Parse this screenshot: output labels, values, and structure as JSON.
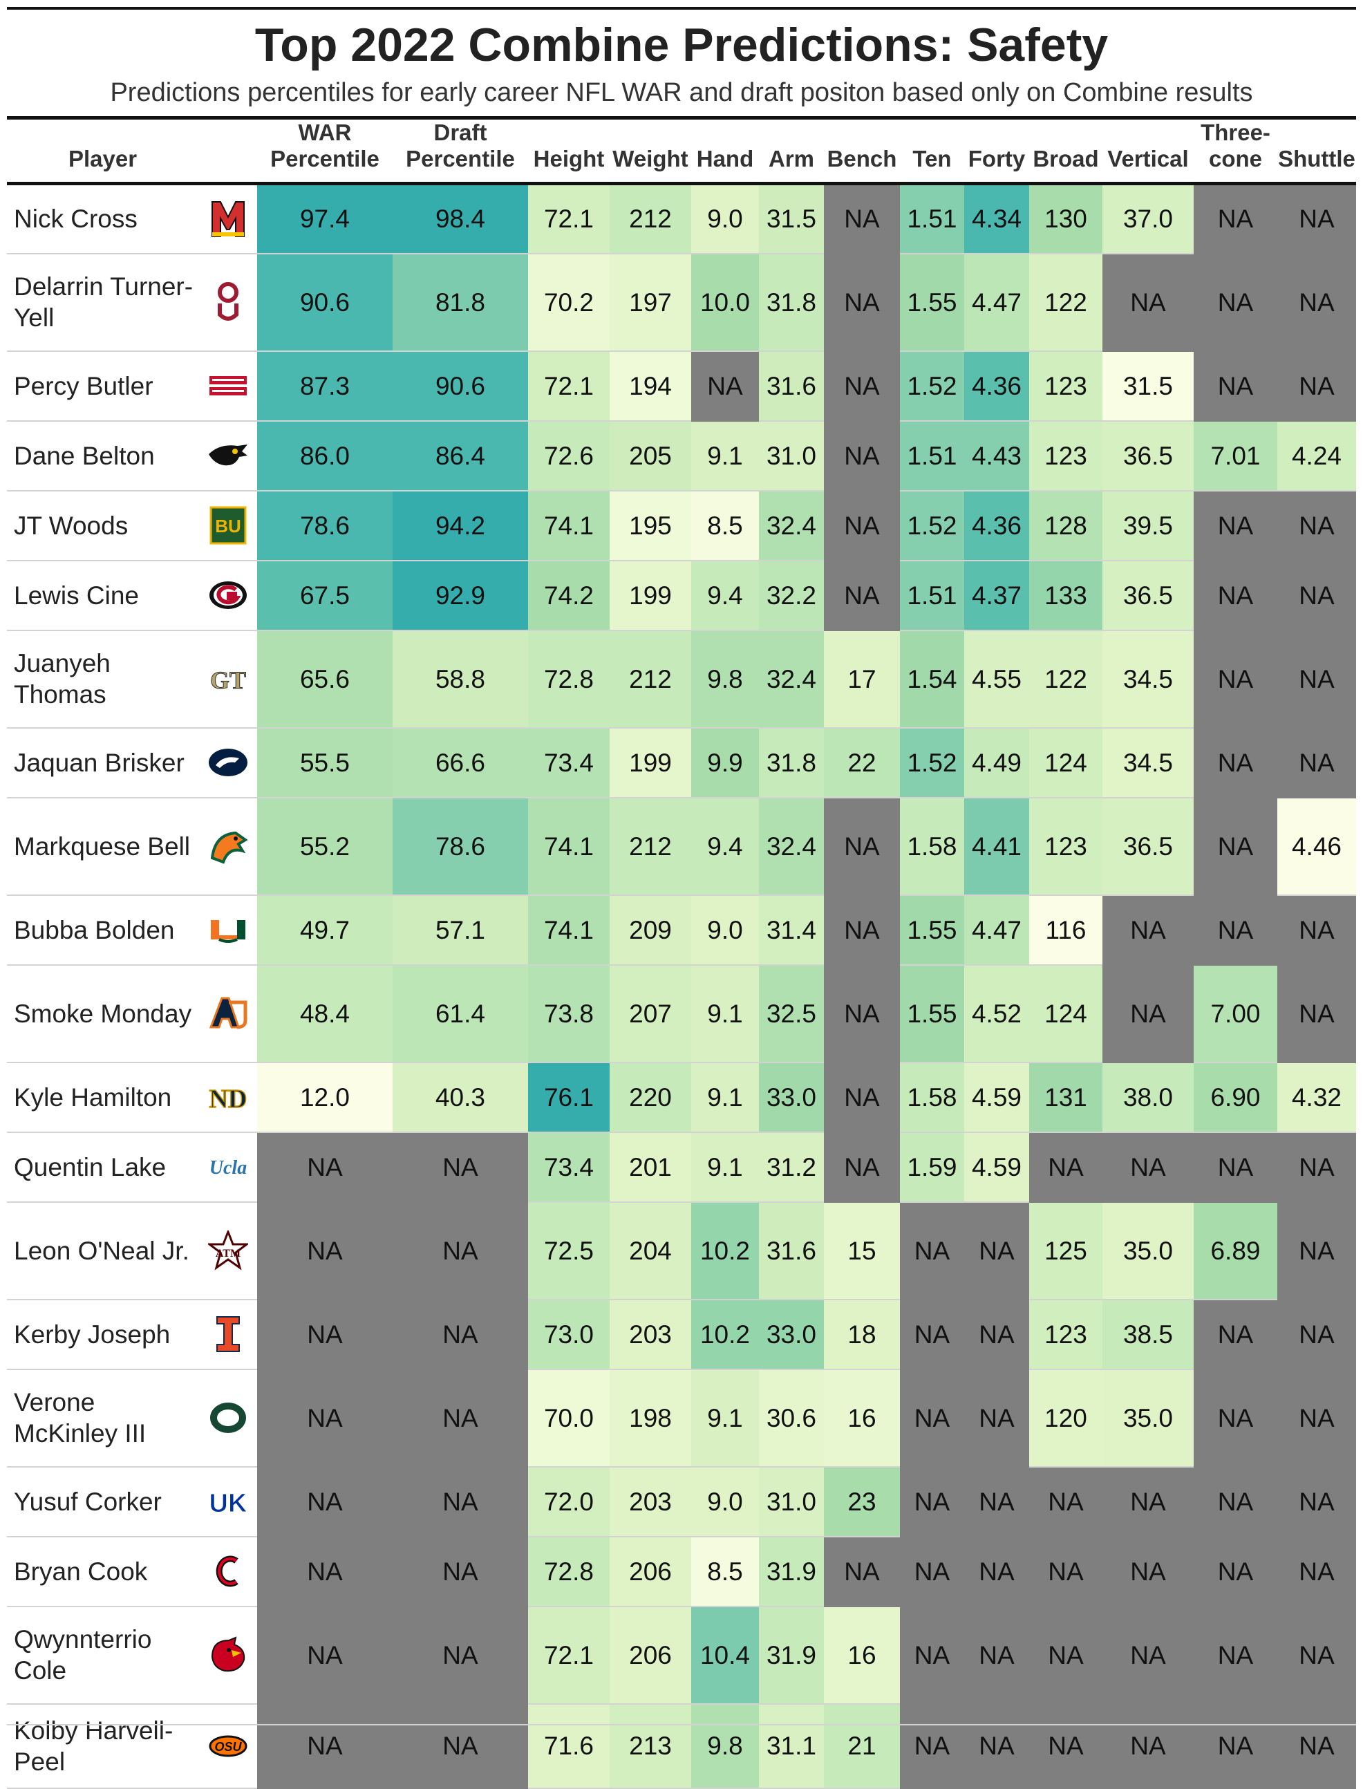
{
  "title": "Top 2022 Combine Predictions: Safety",
  "subtitle": "Predictions percentiles for early career NFL WAR and draft positon based only on Combine results",
  "columns": [
    {
      "key": "player",
      "label": "Player"
    },
    {
      "key": "logo",
      "label": ""
    },
    {
      "key": "war",
      "label": "WAR Percentile"
    },
    {
      "key": "draft",
      "label": "Draft Percentile"
    },
    {
      "key": "height",
      "label": "Height"
    },
    {
      "key": "weight",
      "label": "Weight"
    },
    {
      "key": "hand",
      "label": "Hand"
    },
    {
      "key": "arm",
      "label": "Arm"
    },
    {
      "key": "bench",
      "label": "Bench"
    },
    {
      "key": "ten",
      "label": "Ten"
    },
    {
      "key": "forty",
      "label": "Forty"
    },
    {
      "key": "broad",
      "label": "Broad"
    },
    {
      "key": "vertical",
      "label": "Vertical"
    },
    {
      "key": "three_cone",
      "label": "Three-cone"
    },
    {
      "key": "shuttle",
      "label": "Shuttle"
    }
  ],
  "chart_data": {
    "type": "table",
    "title": "Top 2022 Combine Predictions: Safety",
    "subtitle": "Predictions percentiles for early career NFL WAR and draft positon based only on Combine results",
    "na_label": "NA",
    "na_color": "#7f7f7f",
    "color_scale": [
      "#fbfde6",
      "#d8f0c2",
      "#a8dcab",
      "#7ccbae",
      "#4bb8b0",
      "#35adac"
    ],
    "rows": [
      {
        "player": "Nick Cross",
        "logo": "maryland-logo-icon",
        "war": "97.4",
        "draft": "98.4",
        "height": "72.1",
        "weight": "212",
        "hand": "9.0",
        "arm": "31.5",
        "bench": "NA",
        "ten": "1.51",
        "forty": "4.34",
        "broad": "130",
        "vertical": "37.0",
        "three_cone": "NA",
        "shuttle": "NA"
      },
      {
        "player": "Delarrin Turner-Yell",
        "logo": "oklahoma-logo-icon",
        "war": "90.6",
        "draft": "81.8",
        "height": "70.2",
        "weight": "197",
        "hand": "10.0",
        "arm": "31.8",
        "bench": "NA",
        "ten": "1.55",
        "forty": "4.47",
        "broad": "122",
        "vertical": "NA",
        "three_cone": "NA",
        "shuttle": "NA"
      },
      {
        "player": "Percy Butler",
        "logo": "louisiana-ragin-cajuns-logo-icon",
        "war": "87.3",
        "draft": "90.6",
        "height": "72.1",
        "weight": "194",
        "hand": "NA",
        "arm": "31.6",
        "bench": "NA",
        "ten": "1.52",
        "forty": "4.36",
        "broad": "123",
        "vertical": "31.5",
        "three_cone": "NA",
        "shuttle": "NA"
      },
      {
        "player": "Dane Belton",
        "logo": "iowa-hawkeye-logo-icon",
        "war": "86.0",
        "draft": "86.4",
        "height": "72.6",
        "weight": "205",
        "hand": "9.1",
        "arm": "31.0",
        "bench": "NA",
        "ten": "1.51",
        "forty": "4.43",
        "broad": "123",
        "vertical": "36.5",
        "three_cone": "7.01",
        "shuttle": "4.24"
      },
      {
        "player": "JT Woods",
        "logo": "baylor-logo-icon",
        "war": "78.6",
        "draft": "94.2",
        "height": "74.1",
        "weight": "195",
        "hand": "8.5",
        "arm": "32.4",
        "bench": "NA",
        "ten": "1.52",
        "forty": "4.36",
        "broad": "128",
        "vertical": "39.5",
        "three_cone": "NA",
        "shuttle": "NA"
      },
      {
        "player": "Lewis Cine",
        "logo": "georgia-logo-icon",
        "war": "67.5",
        "draft": "92.9",
        "height": "74.2",
        "weight": "199",
        "hand": "9.4",
        "arm": "32.2",
        "bench": "NA",
        "ten": "1.51",
        "forty": "4.37",
        "broad": "133",
        "vertical": "36.5",
        "three_cone": "NA",
        "shuttle": "NA"
      },
      {
        "player": "Juanyeh Thomas",
        "logo": "georgia-tech-logo-icon",
        "war": "65.6",
        "draft": "58.8",
        "height": "72.8",
        "weight": "212",
        "hand": "9.8",
        "arm": "32.4",
        "bench": "17",
        "ten": "1.54",
        "forty": "4.55",
        "broad": "122",
        "vertical": "34.5",
        "three_cone": "NA",
        "shuttle": "NA"
      },
      {
        "player": "Jaquan Brisker",
        "logo": "penn-state-logo-icon",
        "war": "55.5",
        "draft": "66.6",
        "height": "73.4",
        "weight": "199",
        "hand": "9.9",
        "arm": "31.8",
        "bench": "22",
        "ten": "1.52",
        "forty": "4.49",
        "broad": "124",
        "vertical": "34.5",
        "three_cone": "NA",
        "shuttle": "NA"
      },
      {
        "player": "Markquese Bell",
        "logo": "florida-am-rattler-logo-icon",
        "war": "55.2",
        "draft": "78.6",
        "height": "74.1",
        "weight": "212",
        "hand": "9.4",
        "arm": "32.4",
        "bench": "NA",
        "ten": "1.58",
        "forty": "4.41",
        "broad": "123",
        "vertical": "36.5",
        "three_cone": "NA",
        "shuttle": "4.46"
      },
      {
        "player": "Bubba Bolden",
        "logo": "miami-logo-icon",
        "war": "49.7",
        "draft": "57.1",
        "height": "74.1",
        "weight": "209",
        "hand": "9.0",
        "arm": "31.4",
        "bench": "NA",
        "ten": "1.55",
        "forty": "4.47",
        "broad": "116",
        "vertical": "NA",
        "three_cone": "NA",
        "shuttle": "NA"
      },
      {
        "player": "Smoke Monday",
        "logo": "auburn-logo-icon",
        "war": "48.4",
        "draft": "61.4",
        "height": "73.8",
        "weight": "207",
        "hand": "9.1",
        "arm": "32.5",
        "bench": "NA",
        "ten": "1.55",
        "forty": "4.52",
        "broad": "124",
        "vertical": "NA",
        "three_cone": "7.00",
        "shuttle": "NA"
      },
      {
        "player": "Kyle Hamilton",
        "logo": "notre-dame-logo-icon",
        "war": "12.0",
        "draft": "40.3",
        "height": "76.1",
        "weight": "220",
        "hand": "9.1",
        "arm": "33.0",
        "bench": "NA",
        "ten": "1.58",
        "forty": "4.59",
        "broad": "131",
        "vertical": "38.0",
        "three_cone": "6.90",
        "shuttle": "4.32"
      },
      {
        "player": "Quentin Lake",
        "logo": "ucla-logo-icon",
        "war": "NA",
        "draft": "NA",
        "height": "73.4",
        "weight": "201",
        "hand": "9.1",
        "arm": "31.2",
        "bench": "NA",
        "ten": "1.59",
        "forty": "4.59",
        "broad": "NA",
        "vertical": "NA",
        "three_cone": "NA",
        "shuttle": "NA"
      },
      {
        "player": "Leon O'Neal Jr.",
        "logo": "texas-am-logo-icon",
        "war": "NA",
        "draft": "NA",
        "height": "72.5",
        "weight": "204",
        "hand": "10.2",
        "arm": "31.6",
        "bench": "15",
        "ten": "NA",
        "forty": "NA",
        "broad": "125",
        "vertical": "35.0",
        "three_cone": "6.89",
        "shuttle": "NA"
      },
      {
        "player": "Kerby Joseph",
        "logo": "illinois-logo-icon",
        "war": "NA",
        "draft": "NA",
        "height": "73.0",
        "weight": "203",
        "hand": "10.2",
        "arm": "33.0",
        "bench": "18",
        "ten": "NA",
        "forty": "NA",
        "broad": "123",
        "vertical": "38.5",
        "three_cone": "NA",
        "shuttle": "NA"
      },
      {
        "player": "Verone McKinley III",
        "logo": "oregon-logo-icon",
        "war": "NA",
        "draft": "NA",
        "height": "70.0",
        "weight": "198",
        "hand": "9.1",
        "arm": "30.6",
        "bench": "16",
        "ten": "NA",
        "forty": "NA",
        "broad": "120",
        "vertical": "35.0",
        "three_cone": "NA",
        "shuttle": "NA"
      },
      {
        "player": "Yusuf Corker",
        "logo": "kentucky-logo-icon",
        "war": "NA",
        "draft": "NA",
        "height": "72.0",
        "weight": "203",
        "hand": "9.0",
        "arm": "31.0",
        "bench": "23",
        "ten": "NA",
        "forty": "NA",
        "broad": "NA",
        "vertical": "NA",
        "three_cone": "NA",
        "shuttle": "NA"
      },
      {
        "player": "Bryan Cook",
        "logo": "cincinnati-logo-icon",
        "war": "NA",
        "draft": "NA",
        "height": "72.8",
        "weight": "206",
        "hand": "8.5",
        "arm": "31.9",
        "bench": "NA",
        "ten": "NA",
        "forty": "NA",
        "broad": "NA",
        "vertical": "NA",
        "three_cone": "NA",
        "shuttle": "NA"
      },
      {
        "player": "Qwynnterrio Cole",
        "logo": "louisville-cardinal-logo-icon",
        "war": "NA",
        "draft": "NA",
        "height": "72.1",
        "weight": "206",
        "hand": "10.4",
        "arm": "31.9",
        "bench": "16",
        "ten": "NA",
        "forty": "NA",
        "broad": "NA",
        "vertical": "NA",
        "three_cone": "NA",
        "shuttle": "NA"
      },
      {
        "player": "Kolby Harvell-Peel",
        "logo": "oklahoma-state-logo-icon",
        "war": "NA",
        "draft": "NA",
        "height": "71.6",
        "weight": "213",
        "hand": "9.8",
        "arm": "31.1",
        "bench": "21",
        "ten": "NA",
        "forty": "NA",
        "broad": "NA",
        "vertical": "NA",
        "three_cone": "NA",
        "shuttle": "NA"
      }
    ],
    "cell_colors": [
      [
        "#35adac",
        "#35adac",
        "#d3efbf",
        "#c7eabb",
        "#dff3c6",
        "#cfecbd",
        "#7f7f7f",
        "#85cfae",
        "#4bb8b0",
        "#a8dcab",
        "#d6f0c2",
        "#7f7f7f",
        "#7f7f7f"
      ],
      [
        "#4bb8b0",
        "#7ccbae",
        "#ebf8d3",
        "#e5f6cd",
        "#a8dcab",
        "#c7eabb",
        "#7f7f7f",
        "#a2d9ab",
        "#bde6b6",
        "#d8f0c2",
        "#7f7f7f",
        "#7f7f7f",
        "#7f7f7f"
      ],
      [
        "#4bb8b0",
        "#4bb8b0",
        "#d3efbf",
        "#effad9",
        "#7f7f7f",
        "#cfecbd",
        "#7f7f7f",
        "#85cfae",
        "#5bbfae",
        "#d1eebe",
        "#f8fde3",
        "#7f7f7f",
        "#7f7f7f"
      ],
      [
        "#4bb8b0",
        "#4bb8b0",
        "#c7eabb",
        "#cfecbd",
        "#d8f0c2",
        "#d8f0c2",
        "#7f7f7f",
        "#85cfae",
        "#85cfae",
        "#d1eebe",
        "#d6f0c2",
        "#b5e2b3",
        "#d1eebe"
      ],
      [
        "#4bb8b0",
        "#35adac",
        "#b0dfb0",
        "#effad9",
        "#f4fbde",
        "#b0dfb0",
        "#7f7f7f",
        "#85cfae",
        "#5bbfae",
        "#b5e2b3",
        "#d1eebe",
        "#7f7f7f",
        "#7f7f7f"
      ],
      [
        "#5bbfae",
        "#35adac",
        "#a8dcab",
        "#e5f6cd",
        "#c7eabb",
        "#bde6b6",
        "#7f7f7f",
        "#85cfae",
        "#5bbfae",
        "#95d5ac",
        "#d6f0c2",
        "#7f7f7f",
        "#7f7f7f"
      ],
      [
        "#b0dfb0",
        "#cfecbd",
        "#c7eabb",
        "#c7eabb",
        "#b0dfb0",
        "#b0dfb0",
        "#dff3c6",
        "#a2d9ab",
        "#d8f0c2",
        "#d8f0c2",
        "#e0f4c8",
        "#7f7f7f",
        "#7f7f7f"
      ],
      [
        "#b0dfb0",
        "#b5e2b3",
        "#b5e2b3",
        "#e5f6cd",
        "#a8dcab",
        "#c7eabb",
        "#bde6b6",
        "#85cfae",
        "#c7eabb",
        "#d1eebe",
        "#e0f4c8",
        "#7f7f7f",
        "#7f7f7f"
      ],
      [
        "#b0dfb0",
        "#85cfae",
        "#b0dfb0",
        "#c7eabb",
        "#c7eabb",
        "#b0dfb0",
        "#7f7f7f",
        "#c7eabb",
        "#7ccbae",
        "#d1eebe",
        "#d6f0c2",
        "#7f7f7f",
        "#fbfde6"
      ],
      [
        "#c7eabb",
        "#cfecbd",
        "#b0dfb0",
        "#d8f0c2",
        "#dff3c6",
        "#d3efbf",
        "#7f7f7f",
        "#a2d9ab",
        "#bde6b6",
        "#fbfde6",
        "#7f7f7f",
        "#7f7f7f",
        "#7f7f7f"
      ],
      [
        "#c7eabb",
        "#bde6b6",
        "#b5e2b3",
        "#d3efbf",
        "#d8f0c2",
        "#b0dfb0",
        "#7f7f7f",
        "#a2d9ab",
        "#d1eebe",
        "#d1eebe",
        "#7f7f7f",
        "#b5e2b3",
        "#7f7f7f"
      ],
      [
        "#fbfde6",
        "#d8f0c2",
        "#35adac",
        "#c7eabb",
        "#d8f0c2",
        "#a2d9ab",
        "#7f7f7f",
        "#c7eabb",
        "#dff3c6",
        "#a2d9ab",
        "#c7eabb",
        "#a8dcab",
        "#dff3c6"
      ],
      [
        "#7f7f7f",
        "#7f7f7f",
        "#b5e2b3",
        "#e0f4c8",
        "#d8f0c2",
        "#d8f0c2",
        "#7f7f7f",
        "#c7eabb",
        "#dff3c6",
        "#7f7f7f",
        "#7f7f7f",
        "#7f7f7f",
        "#7f7f7f"
      ],
      [
        "#7f7f7f",
        "#7f7f7f",
        "#c7eabb",
        "#d8f0c2",
        "#95d5ac",
        "#cfecbd",
        "#e5f6cd",
        "#7f7f7f",
        "#7f7f7f",
        "#d1eebe",
        "#dff3c6",
        "#a8dcab",
        "#7f7f7f"
      ],
      [
        "#7f7f7f",
        "#7f7f7f",
        "#bde6b6",
        "#dff3c6",
        "#95d5ac",
        "#95d5ac",
        "#dff3c6",
        "#7f7f7f",
        "#7f7f7f",
        "#d1eebe",
        "#c7eabb",
        "#7f7f7f",
        "#7f7f7f"
      ],
      [
        "#7f7f7f",
        "#7f7f7f",
        "#eef9d6",
        "#e5f6cd",
        "#d8f0c2",
        "#e5f6cd",
        "#e8f7d0",
        "#7f7f7f",
        "#7f7f7f",
        "#e0f4c8",
        "#dff3c6",
        "#7f7f7f",
        "#7f7f7f"
      ],
      [
        "#7f7f7f",
        "#7f7f7f",
        "#d3efbf",
        "#dff3c6",
        "#dff3c6",
        "#d8f0c2",
        "#a8dcab",
        "#7f7f7f",
        "#7f7f7f",
        "#7f7f7f",
        "#7f7f7f",
        "#7f7f7f",
        "#7f7f7f"
      ],
      [
        "#7f7f7f",
        "#7f7f7f",
        "#c7eabb",
        "#dff3c6",
        "#f4fbde",
        "#c7eabb",
        "#7f7f7f",
        "#7f7f7f",
        "#7f7f7f",
        "#7f7f7f",
        "#7f7f7f",
        "#7f7f7f",
        "#7f7f7f"
      ],
      [
        "#7f7f7f",
        "#7f7f7f",
        "#d3efbf",
        "#dff3c6",
        "#7ccbae",
        "#c7eabb",
        "#e5f6cd",
        "#7f7f7f",
        "#7f7f7f",
        "#7f7f7f",
        "#7f7f7f",
        "#7f7f7f",
        "#7f7f7f"
      ],
      [
        "#7f7f7f",
        "#7f7f7f",
        "#dff3c6",
        "#d3efbf",
        "#b0dfb0",
        "#d8f0c2",
        "#c7eabb",
        "#7f7f7f",
        "#7f7f7f",
        "#7f7f7f",
        "#7f7f7f",
        "#7f7f7f",
        "#7f7f7f"
      ]
    ]
  }
}
